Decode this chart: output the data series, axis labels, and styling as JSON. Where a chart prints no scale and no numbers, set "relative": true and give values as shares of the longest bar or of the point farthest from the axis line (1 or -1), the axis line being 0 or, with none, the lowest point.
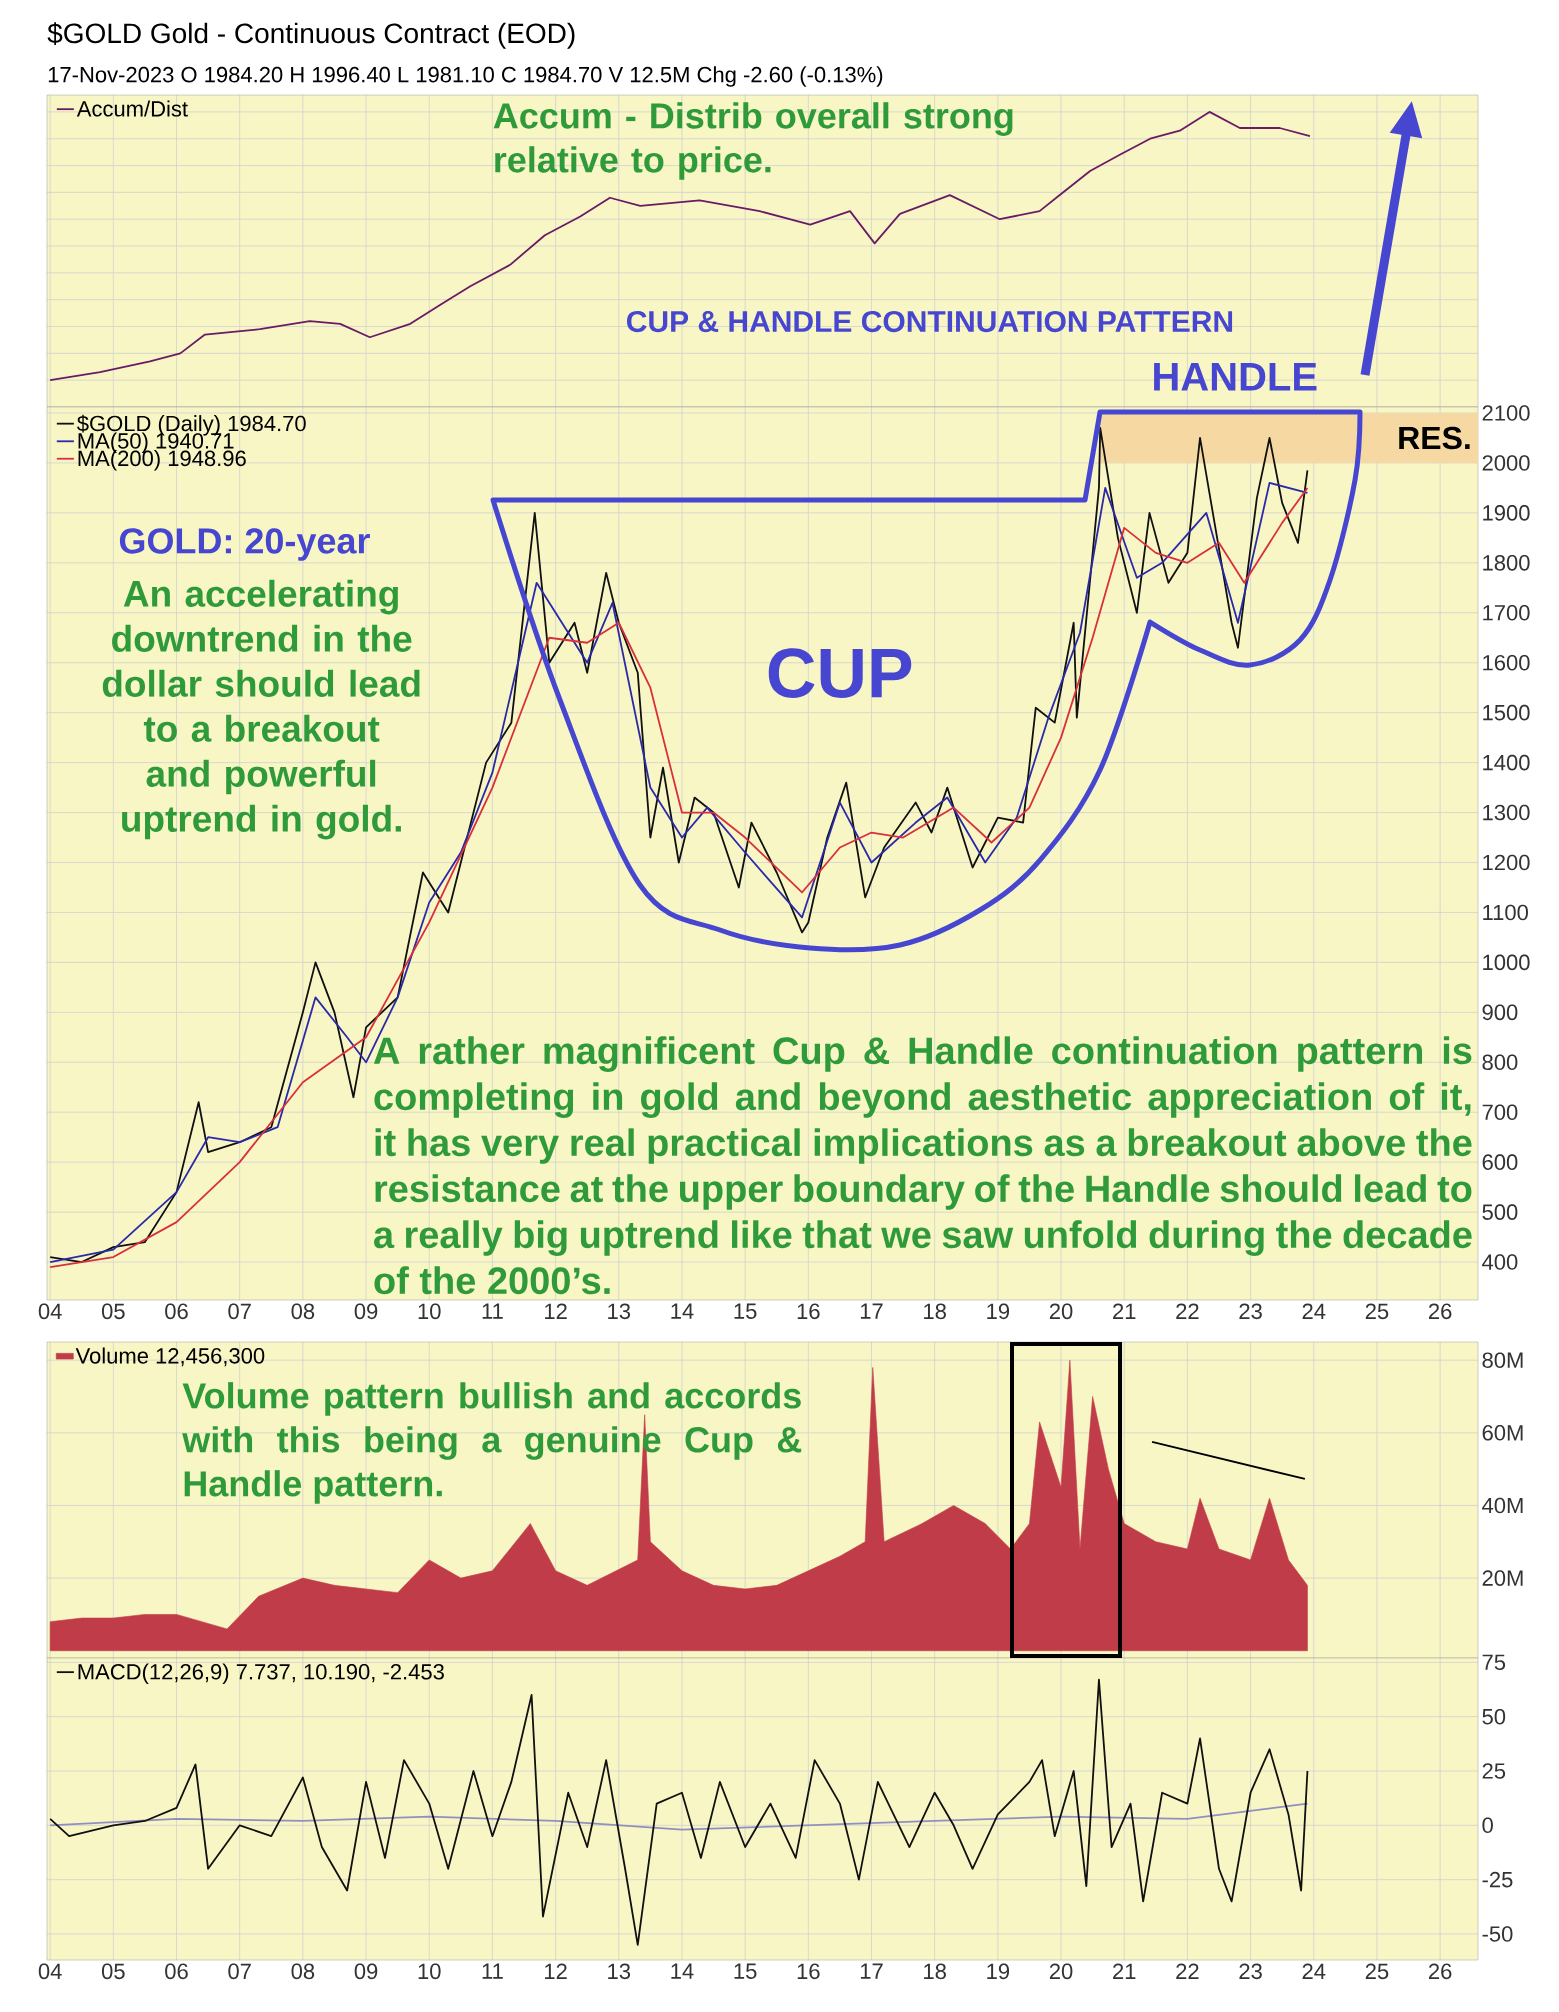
{
  "chart_data": [
    {
      "type": "line",
      "title": "$GOLD Gold - Continuous Contract (EOD)",
      "subtitle": "17-Nov-2023 O 1984.20 H 1996.40 L 1981.10 C 1984.70 V 12.5M Chg -2.60 (-0.13%)",
      "relative": true,
      "xlim": [
        2003.95,
        2026.6
      ],
      "xticks": [
        {
          "value": 2004,
          "label": null
        },
        {
          "value": 2005,
          "label": null
        },
        {
          "value": 2006,
          "label": null
        },
        {
          "value": 2007,
          "label": null
        },
        {
          "value": 2008,
          "label": null
        },
        {
          "value": 2009,
          "label": null
        },
        {
          "value": 2010,
          "label": null
        },
        {
          "value": 2011,
          "label": null
        },
        {
          "value": 2012,
          "label": null
        },
        {
          "value": 2013,
          "label": null
        },
        {
          "value": 2014,
          "label": null
        },
        {
          "value": 2015,
          "label": null
        },
        {
          "value": 2016,
          "label": null
        },
        {
          "value": 2017,
          "label": null
        },
        {
          "value": 2018,
          "label": null
        },
        {
          "value": 2019,
          "label": null
        },
        {
          "value": 2020,
          "label": null
        },
        {
          "value": 2021,
          "label": null
        },
        {
          "value": 2022,
          "label": null
        },
        {
          "value": 2023,
          "label": null
        },
        {
          "value": 2024,
          "label": null
        },
        {
          "value": 2025,
          "label": null
        },
        {
          "value": 2026,
          "label": null
        }
      ],
      "tick_labels": false,
      "grid": true,
      "legend": "top left",
      "annotations": [
        "Accum - Distrib overall strong relative to price.",
        "CUP & HANDLE CONTINUATION PATTERN",
        "HANDLE"
      ],
      "series": [
        {
          "name": "Accum/Dist",
          "color": "#6b1a66",
          "x": [
            2004.0,
            2004.79,
            2005.58,
            2006.06,
            2006.45,
            2007.32,
            2008.11,
            2008.59,
            2009.06,
            2009.7,
            2010.17,
            2010.65,
            2011.28,
            2011.83,
            2012.39,
            2012.86,
            2013.34,
            2014.28,
            2015.23,
            2016.03,
            2016.66,
            2017.05,
            2017.45,
            2018.24,
            2019.03,
            2019.66,
            2019.98,
            2020.46,
            2020.93,
            2021.41,
            2021.88,
            2022.35,
            2022.83,
            2023.46,
            2023.94
          ],
          "values": [
            0,
            0.03,
            0.07,
            0.1,
            0.17,
            0.19,
            0.22,
            0.21,
            0.16,
            0.21,
            0.28,
            0.35,
            0.43,
            0.54,
            0.61,
            0.68,
            0.65,
            0.67,
            0.63,
            0.58,
            0.63,
            0.51,
            0.62,
            0.69,
            0.6,
            0.63,
            0.69,
            0.78,
            0.84,
            0.9,
            0.93,
            1,
            0.94,
            0.94,
            0.91
          ]
        }
      ]
    },
    {
      "type": "line",
      "xlim": [
        2003.95,
        2026.6
      ],
      "ylim": [
        324,
        2112
      ],
      "xticks": [
        {
          "value": 2004,
          "label": "04"
        },
        {
          "value": 2005,
          "label": "05"
        },
        {
          "value": 2006,
          "label": "06"
        },
        {
          "value": 2007,
          "label": "07"
        },
        {
          "value": 2008,
          "label": "08"
        },
        {
          "value": 2009,
          "label": "09"
        },
        {
          "value": 2010,
          "label": "10"
        },
        {
          "value": 2011,
          "label": "11"
        },
        {
          "value": 2012,
          "label": "12"
        },
        {
          "value": 2013,
          "label": "13"
        },
        {
          "value": 2014,
          "label": "14"
        },
        {
          "value": 2015,
          "label": "15"
        },
        {
          "value": 2016,
          "label": "16"
        },
        {
          "value": 2017,
          "label": "17"
        },
        {
          "value": 2018,
          "label": "18"
        },
        {
          "value": 2019,
          "label": "19"
        },
        {
          "value": 2020,
          "label": "20"
        },
        {
          "value": 2021,
          "label": "21"
        },
        {
          "value": 2022,
          "label": "22"
        },
        {
          "value": 2023,
          "label": "23"
        },
        {
          "value": 2024,
          "label": "24"
        },
        {
          "value": 2025,
          "label": "25"
        },
        {
          "value": 2026,
          "label": "26"
        }
      ],
      "yticks": [
        400,
        500,
        600,
        700,
        800,
        900,
        1000,
        1100,
        1200,
        1300,
        1400,
        1500,
        1600,
        1700,
        1800,
        1900,
        2000,
        2100
      ],
      "grid": true,
      "legend": "top left",
      "bands": [
        {
          "axis": "y",
          "from": 2000,
          "to": 2100,
          "label": "RES.",
          "color": "#f6d9a2"
        }
      ],
      "annotations": [
        "GOLD: 20-year",
        "An accelerating downtrend in the dollar should lead to a breakout and powerful uptrend in gold.",
        "CUP",
        "A rather magnificent Cup & Handle continuation pattern is completing in gold and beyond aesthetic appreciation of it, it has very real practical implications as a breakout above the resistance at the upper boundary of the Handle should lead to a really big uptrend like that we saw unfold during the decade of the 2000’s."
      ],
      "series": [
        {
          "name": "$GOLD (Daily) 1984.70",
          "color": "#101010",
          "x": [
            2004.0,
            2004.5,
            2005.0,
            2005.5,
            2006.0,
            2006.35,
            2006.5,
            2007.0,
            2007.5,
            2008.0,
            2008.2,
            2008.5,
            2008.8,
            2009.0,
            2009.5,
            2009.9,
            2010.3,
            2010.9,
            2011.3,
            2011.67,
            2011.9,
            2012.3,
            2012.5,
            2012.8,
            2013.0,
            2013.3,
            2013.5,
            2013.7,
            2013.95,
            2014.2,
            2014.5,
            2014.9,
            2015.1,
            2015.5,
            2015.9,
            2016.0,
            2016.3,
            2016.6,
            2016.9,
            2017.2,
            2017.7,
            2017.95,
            2018.2,
            2018.6,
            2019.0,
            2019.4,
            2019.6,
            2019.9,
            2020.2,
            2020.25,
            2020.6,
            2020.62,
            2020.9,
            2021.2,
            2021.4,
            2021.7,
            2022.0,
            2022.2,
            2022.7,
            2022.8,
            2023.1,
            2023.3,
            2023.5,
            2023.75,
            2023.9
          ],
          "values": [
            410,
            400,
            430,
            440,
            540,
            720,
            620,
            640,
            670,
            900,
            1000,
            900,
            730,
            870,
            930,
            1180,
            1100,
            1400,
            1480,
            1900,
            1600,
            1680,
            1580,
            1780,
            1680,
            1580,
            1250,
            1390,
            1200,
            1330,
            1300,
            1150,
            1280,
            1180,
            1060,
            1080,
            1250,
            1360,
            1130,
            1230,
            1320,
            1260,
            1350,
            1190,
            1290,
            1280,
            1510,
            1480,
            1680,
            1490,
            1950,
            2070,
            1850,
            1700,
            1900,
            1760,
            1820,
            2050,
            1680,
            1630,
            1930,
            2050,
            1920,
            1840,
            1985
          ]
        },
        {
          "name": "MA(50) 1940.71",
          "color": "#2a2aa8",
          "x": [
            2004.0,
            2005.0,
            2006.0,
            2006.5,
            2007.0,
            2007.6,
            2008.2,
            2008.7,
            2009.0,
            2009.5,
            2010.0,
            2010.5,
            2011.0,
            2011.7,
            2012.0,
            2012.5,
            2012.9,
            2013.5,
            2014.0,
            2014.4,
            2015.0,
            2015.9,
            2016.5,
            2017.0,
            2017.7,
            2018.2,
            2018.8,
            2019.3,
            2019.8,
            2020.3,
            2020.7,
            2021.2,
            2021.6,
            2022.3,
            2022.8,
            2023.3,
            2023.9
          ],
          "values": [
            400,
            425,
            540,
            650,
            640,
            670,
            930,
            850,
            800,
            930,
            1120,
            1220,
            1380,
            1760,
            1700,
            1600,
            1720,
            1350,
            1250,
            1310,
            1220,
            1090,
            1320,
            1200,
            1280,
            1330,
            1200,
            1290,
            1490,
            1660,
            1950,
            1770,
            1800,
            1900,
            1680,
            1960,
            1940
          ]
        },
        {
          "name": "MA(200) 1948.96",
          "color": "#d8303c",
          "x": [
            2004.0,
            2005.0,
            2006.0,
            2007.0,
            2008.0,
            2009.0,
            2010.0,
            2011.0,
            2011.9,
            2012.5,
            2013.0,
            2013.5,
            2014.0,
            2014.5,
            2015.0,
            2015.9,
            2016.5,
            2017.0,
            2017.5,
            2018.3,
            2018.9,
            2019.5,
            2020.0,
            2020.5,
            2021.0,
            2021.5,
            2022.0,
            2022.5,
            2022.9,
            2023.5,
            2023.9
          ],
          "values": [
            390,
            410,
            480,
            600,
            760,
            850,
            1080,
            1350,
            1650,
            1640,
            1680,
            1550,
            1300,
            1300,
            1250,
            1140,
            1230,
            1260,
            1250,
            1310,
            1240,
            1310,
            1450,
            1650,
            1870,
            1820,
            1800,
            1840,
            1760,
            1880,
            1950
          ]
        }
      ]
    },
    {
      "type": "area",
      "xlim": [
        2003.95,
        2026.6
      ],
      "ylim": [
        -2,
        85
      ],
      "xticks": [
        {
          "value": 2004,
          "label": null
        },
        {
          "value": 2005,
          "label": null
        },
        {
          "value": 2006,
          "label": null
        },
        {
          "value": 2007,
          "label": null
        },
        {
          "value": 2008,
          "label": null
        },
        {
          "value": 2009,
          "label": null
        },
        {
          "value": 2010,
          "label": null
        },
        {
          "value": 2011,
          "label": null
        },
        {
          "value": 2012,
          "label": null
        },
        {
          "value": 2013,
          "label": null
        },
        {
          "value": 2014,
          "label": null
        },
        {
          "value": 2015,
          "label": null
        },
        {
          "value": 2016,
          "label": null
        },
        {
          "value": 2017,
          "label": null
        },
        {
          "value": 2018,
          "label": null
        },
        {
          "value": 2019,
          "label": null
        },
        {
          "value": 2020,
          "label": null
        },
        {
          "value": 2021,
          "label": null
        },
        {
          "value": 2022,
          "label": null
        },
        {
          "value": 2023,
          "label": null
        },
        {
          "value": 2024,
          "label": null
        },
        {
          "value": 2025,
          "label": null
        },
        {
          "value": 2026,
          "label": null
        }
      ],
      "yticks": [
        {
          "value": 20,
          "label": "20M"
        },
        {
          "value": 40,
          "label": "40M"
        },
        {
          "value": 60,
          "label": "60M"
        },
        {
          "value": 80,
          "label": "80M"
        }
      ],
      "tick_labels": "y",
      "grid": true,
      "legend": "top left",
      "annotations": [
        "Volume pattern bullish and accords with this being a genuine Cup & Handle pattern."
      ],
      "series": [
        {
          "type": "line",
          "color": "#000000",
          "x": [
            2021.44,
            2023.86
          ],
          "values": [
            57.5,
            47.3
          ]
        },
        {
          "name": "Volume 12,456,300",
          "color": "#c03c48",
          "x": [
            2004.0,
            2004.5,
            2005.0,
            2005.5,
            2006.0,
            2006.8,
            2007.3,
            2008.0,
            2008.5,
            2009.0,
            2009.5,
            2010.0,
            2010.5,
            2011.0,
            2011.6,
            2012.0,
            2012.5,
            2013.3,
            2013.41,
            2013.5,
            2014.0,
            2014.5,
            2015.0,
            2015.5,
            2016.0,
            2016.5,
            2016.9,
            2017.02,
            2017.2,
            2017.8,
            2018.3,
            2018.8,
            2019.2,
            2019.5,
            2019.66,
            2020.0,
            2020.14,
            2020.3,
            2020.5,
            2020.75,
            2021.0,
            2021.5,
            2022.0,
            2022.2,
            2022.5,
            2023.0,
            2023.3,
            2023.6,
            2023.9
          ],
          "values": [
            8,
            9,
            9,
            10,
            10,
            6,
            15,
            20,
            18,
            17,
            16,
            25,
            20,
            22,
            35,
            22,
            18,
            25,
            65,
            30,
            22,
            18,
            17,
            18,
            22,
            26,
            30,
            78,
            30,
            35,
            40,
            35,
            28,
            35,
            63,
            45,
            80,
            28,
            70,
            50,
            35,
            30,
            28,
            42,
            28,
            25,
            42,
            25,
            18
          ]
        }
      ]
    },
    {
      "type": "line",
      "xlim": [
        2003.95,
        2026.6
      ],
      "ylim": [
        -62,
        77
      ],
      "xticks": [
        {
          "value": 2004,
          "label": "04"
        },
        {
          "value": 2005,
          "label": "05"
        },
        {
          "value": 2006,
          "label": "06"
        },
        {
          "value": 2007,
          "label": "07"
        },
        {
          "value": 2008,
          "label": "08"
        },
        {
          "value": 2009,
          "label": "09"
        },
        {
          "value": 2010,
          "label": "10"
        },
        {
          "value": 2011,
          "label": "11"
        },
        {
          "value": 2012,
          "label": "12"
        },
        {
          "value": 2013,
          "label": "13"
        },
        {
          "value": 2014,
          "label": "14"
        },
        {
          "value": 2015,
          "label": "15"
        },
        {
          "value": 2016,
          "label": "16"
        },
        {
          "value": 2017,
          "label": "17"
        },
        {
          "value": 2018,
          "label": "18"
        },
        {
          "value": 2019,
          "label": "19"
        },
        {
          "value": 2020,
          "label": "20"
        },
        {
          "value": 2021,
          "label": "21"
        },
        {
          "value": 2022,
          "label": "22"
        },
        {
          "value": 2023,
          "label": "23"
        },
        {
          "value": 2024,
          "label": "24"
        },
        {
          "value": 2025,
          "label": "25"
        },
        {
          "value": 2026,
          "label": "26"
        }
      ],
      "yticks": [
        -50,
        -25,
        0,
        25,
        50,
        75
      ],
      "grid": true,
      "legend": "top left",
      "series": [
        {
          "color": "#9090c0",
          "x": [
            2004,
            2006,
            2008,
            2010,
            2012,
            2014,
            2016,
            2018,
            2020,
            2022,
            2023.9
          ],
          "values": [
            0,
            3,
            2,
            4,
            2,
            -2,
            0,
            2,
            4,
            3,
            10
          ]
        },
        {
          "name": "MACD(12,26,9) 7.737, 10.190, -2.453",
          "color": "#101010",
          "x": [
            2004.0,
            2004.3,
            2005.0,
            2005.5,
            2006.0,
            2006.3,
            2006.5,
            2007.0,
            2007.5,
            2008.0,
            2008.3,
            2008.7,
            2009.0,
            2009.3,
            2009.6,
            2010.0,
            2010.3,
            2010.7,
            2011.0,
            2011.3,
            2011.62,
            2011.8,
            2012.2,
            2012.5,
            2012.8,
            2013.1,
            2013.3,
            2013.6,
            2014.0,
            2014.3,
            2014.6,
            2015.0,
            2015.4,
            2015.8,
            2016.1,
            2016.5,
            2016.8,
            2017.1,
            2017.6,
            2018.0,
            2018.3,
            2018.6,
            2019.0,
            2019.5,
            2019.7,
            2019.9,
            2020.2,
            2020.4,
            2020.6,
            2020.8,
            2021.1,
            2021.3,
            2021.6,
            2022.0,
            2022.2,
            2022.5,
            2022.7,
            2023.0,
            2023.3,
            2023.6,
            2023.8,
            2023.9
          ],
          "values": [
            3,
            -5,
            0,
            2,
            8,
            28,
            -20,
            0,
            -5,
            22,
            -10,
            -30,
            20,
            -15,
            30,
            10,
            -20,
            25,
            -5,
            20,
            60,
            -42,
            15,
            -10,
            30,
            -20,
            -55,
            10,
            15,
            -15,
            20,
            -10,
            10,
            -15,
            30,
            10,
            -25,
            20,
            -10,
            15,
            0,
            -20,
            5,
            20,
            30,
            -5,
            25,
            -28,
            67,
            -10,
            10,
            -35,
            15,
            10,
            40,
            -20,
            -35,
            15,
            35,
            5,
            -30,
            25
          ]
        }
      ]
    }
  ]
}
